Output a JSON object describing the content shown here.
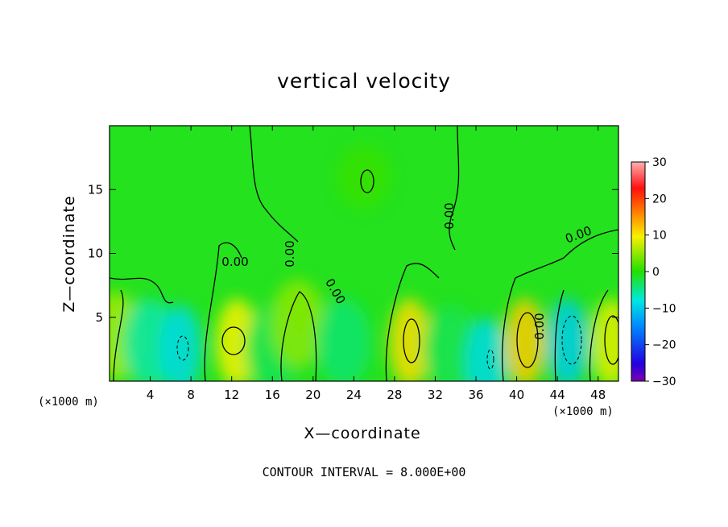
{
  "title": "vertical velocity",
  "footer": "CONTOUR INTERVAL = 8.000E+00",
  "chart_data": {
    "type": "heatmap",
    "title": "vertical velocity",
    "xlabel": "X—coordinate",
    "ylabel": "Z—coordinate",
    "x_unit": "(×1000 m)",
    "x_unit_right": "(×1000 m)",
    "xlim": [
      0,
      50
    ],
    "ylim": [
      0,
      20
    ],
    "x_ticks": [
      4,
      8,
      12,
      16,
      20,
      24,
      28,
      32,
      36,
      40,
      44,
      48
    ],
    "y_ticks": [
      5,
      10,
      15
    ],
    "colorbar": {
      "range": [
        -30,
        30
      ],
      "ticks": [
        30,
        20,
        10,
        0,
        -10,
        -20,
        -30
      ],
      "tick_labels": [
        "30",
        "20",
        "10",
        "0",
        "−10",
        "−20",
        "−30"
      ]
    },
    "contour_interval": 8.0,
    "contour_labels": [
      "0.00",
      "0.00",
      "0.00",
      "0.00",
      "0.00",
      "0.00"
    ],
    "features": [
      {
        "x": 0.5,
        "z": 3.5,
        "value": 6
      },
      {
        "x": 4.0,
        "z": 3.0,
        "value": -6
      },
      {
        "x": 7.0,
        "z": 2.5,
        "value": -9
      },
      {
        "x": 12.5,
        "z": 3.0,
        "value": 10
      },
      {
        "x": 16.0,
        "z": 2.5,
        "value": -3
      },
      {
        "x": 18.5,
        "z": 4.5,
        "value": 5
      },
      {
        "x": 23.0,
        "z": 3.0,
        "value": -4
      },
      {
        "x": 29.5,
        "z": 3.0,
        "value": 11
      },
      {
        "x": 33.5,
        "z": 2.5,
        "value": -3
      },
      {
        "x": 37.0,
        "z": 1.5,
        "value": -9
      },
      {
        "x": 40.8,
        "z": 3.0,
        "value": 12
      },
      {
        "x": 45.0,
        "z": 3.0,
        "value": -10
      },
      {
        "x": 49.3,
        "z": 3.0,
        "value": 9
      },
      {
        "x": 25.0,
        "z": 16.0,
        "value": 1
      }
    ]
  }
}
